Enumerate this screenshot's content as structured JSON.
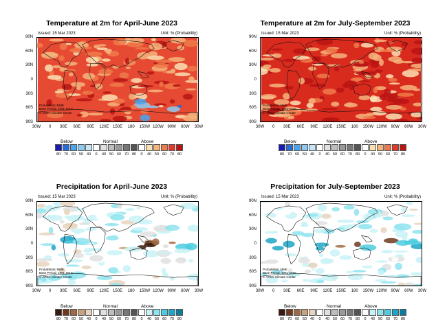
{
  "issued": "Issued: 15 Mar 2023",
  "unit": "Unit: % (Probability)",
  "notes": [
    "Probabilistic MME",
    "Base Period: 1991-2010",
    "© APEC Climate Center"
  ],
  "lat_labels": [
    "90N",
    "60N",
    "30N",
    "0",
    "30S",
    "60S",
    "90S"
  ],
  "lon_labels": [
    "30W",
    "0",
    "30E",
    "60E",
    "90E",
    "120E",
    "150E",
    "180",
    "150W",
    "120W",
    "90W",
    "60W",
    "30W"
  ],
  "legend": {
    "below": "Below",
    "normal": "Normal",
    "above": "Above",
    "ticks": [
      "80",
      "70",
      "60",
      "50",
      "40",
      "0",
      "40",
      "50",
      "60",
      "70",
      "80",
      "0",
      "40",
      "50",
      "60",
      "70",
      "80"
    ]
  },
  "colors": {
    "temp_below": [
      "#1a1ab4",
      "#2a6cd8",
      "#4aa6ea",
      "#8ccaf2",
      "#c6e6fa"
    ],
    "temp_normal": [
      "#ffffff",
      "#e0e0e0",
      "#bdbdbd",
      "#9a9a9a",
      "#787878",
      "#555555"
    ],
    "temp_above": [
      "#ffffff",
      "#fbe0b4",
      "#f5b47c",
      "#ef7a4a",
      "#e13a2a",
      "#b81414"
    ],
    "prec_below": [
      "#3a1a0c",
      "#6e3a1c",
      "#a06a42",
      "#c9a27c",
      "#e8d4be"
    ],
    "prec_normal": [
      "#ffffff",
      "#e0e0e0",
      "#bdbdbd",
      "#9a9a9a",
      "#787878",
      "#555555"
    ],
    "prec_above": [
      "#ffffff",
      "#c8f2f6",
      "#8ee4ee",
      "#4ccde0",
      "#1ea6c6",
      "#0e7c9c"
    ]
  },
  "panels": [
    {
      "title": "Temperature at 2m for April-June 2023",
      "variable": "temperature"
    },
    {
      "title": "Temperature at 2m for July-September 2023",
      "variable": "temperature"
    },
    {
      "title": "Precipitation for April-June 2023",
      "variable": "precipitation"
    },
    {
      "title": "Precipitation for July-September 2023",
      "variable": "precipitation"
    }
  ]
}
